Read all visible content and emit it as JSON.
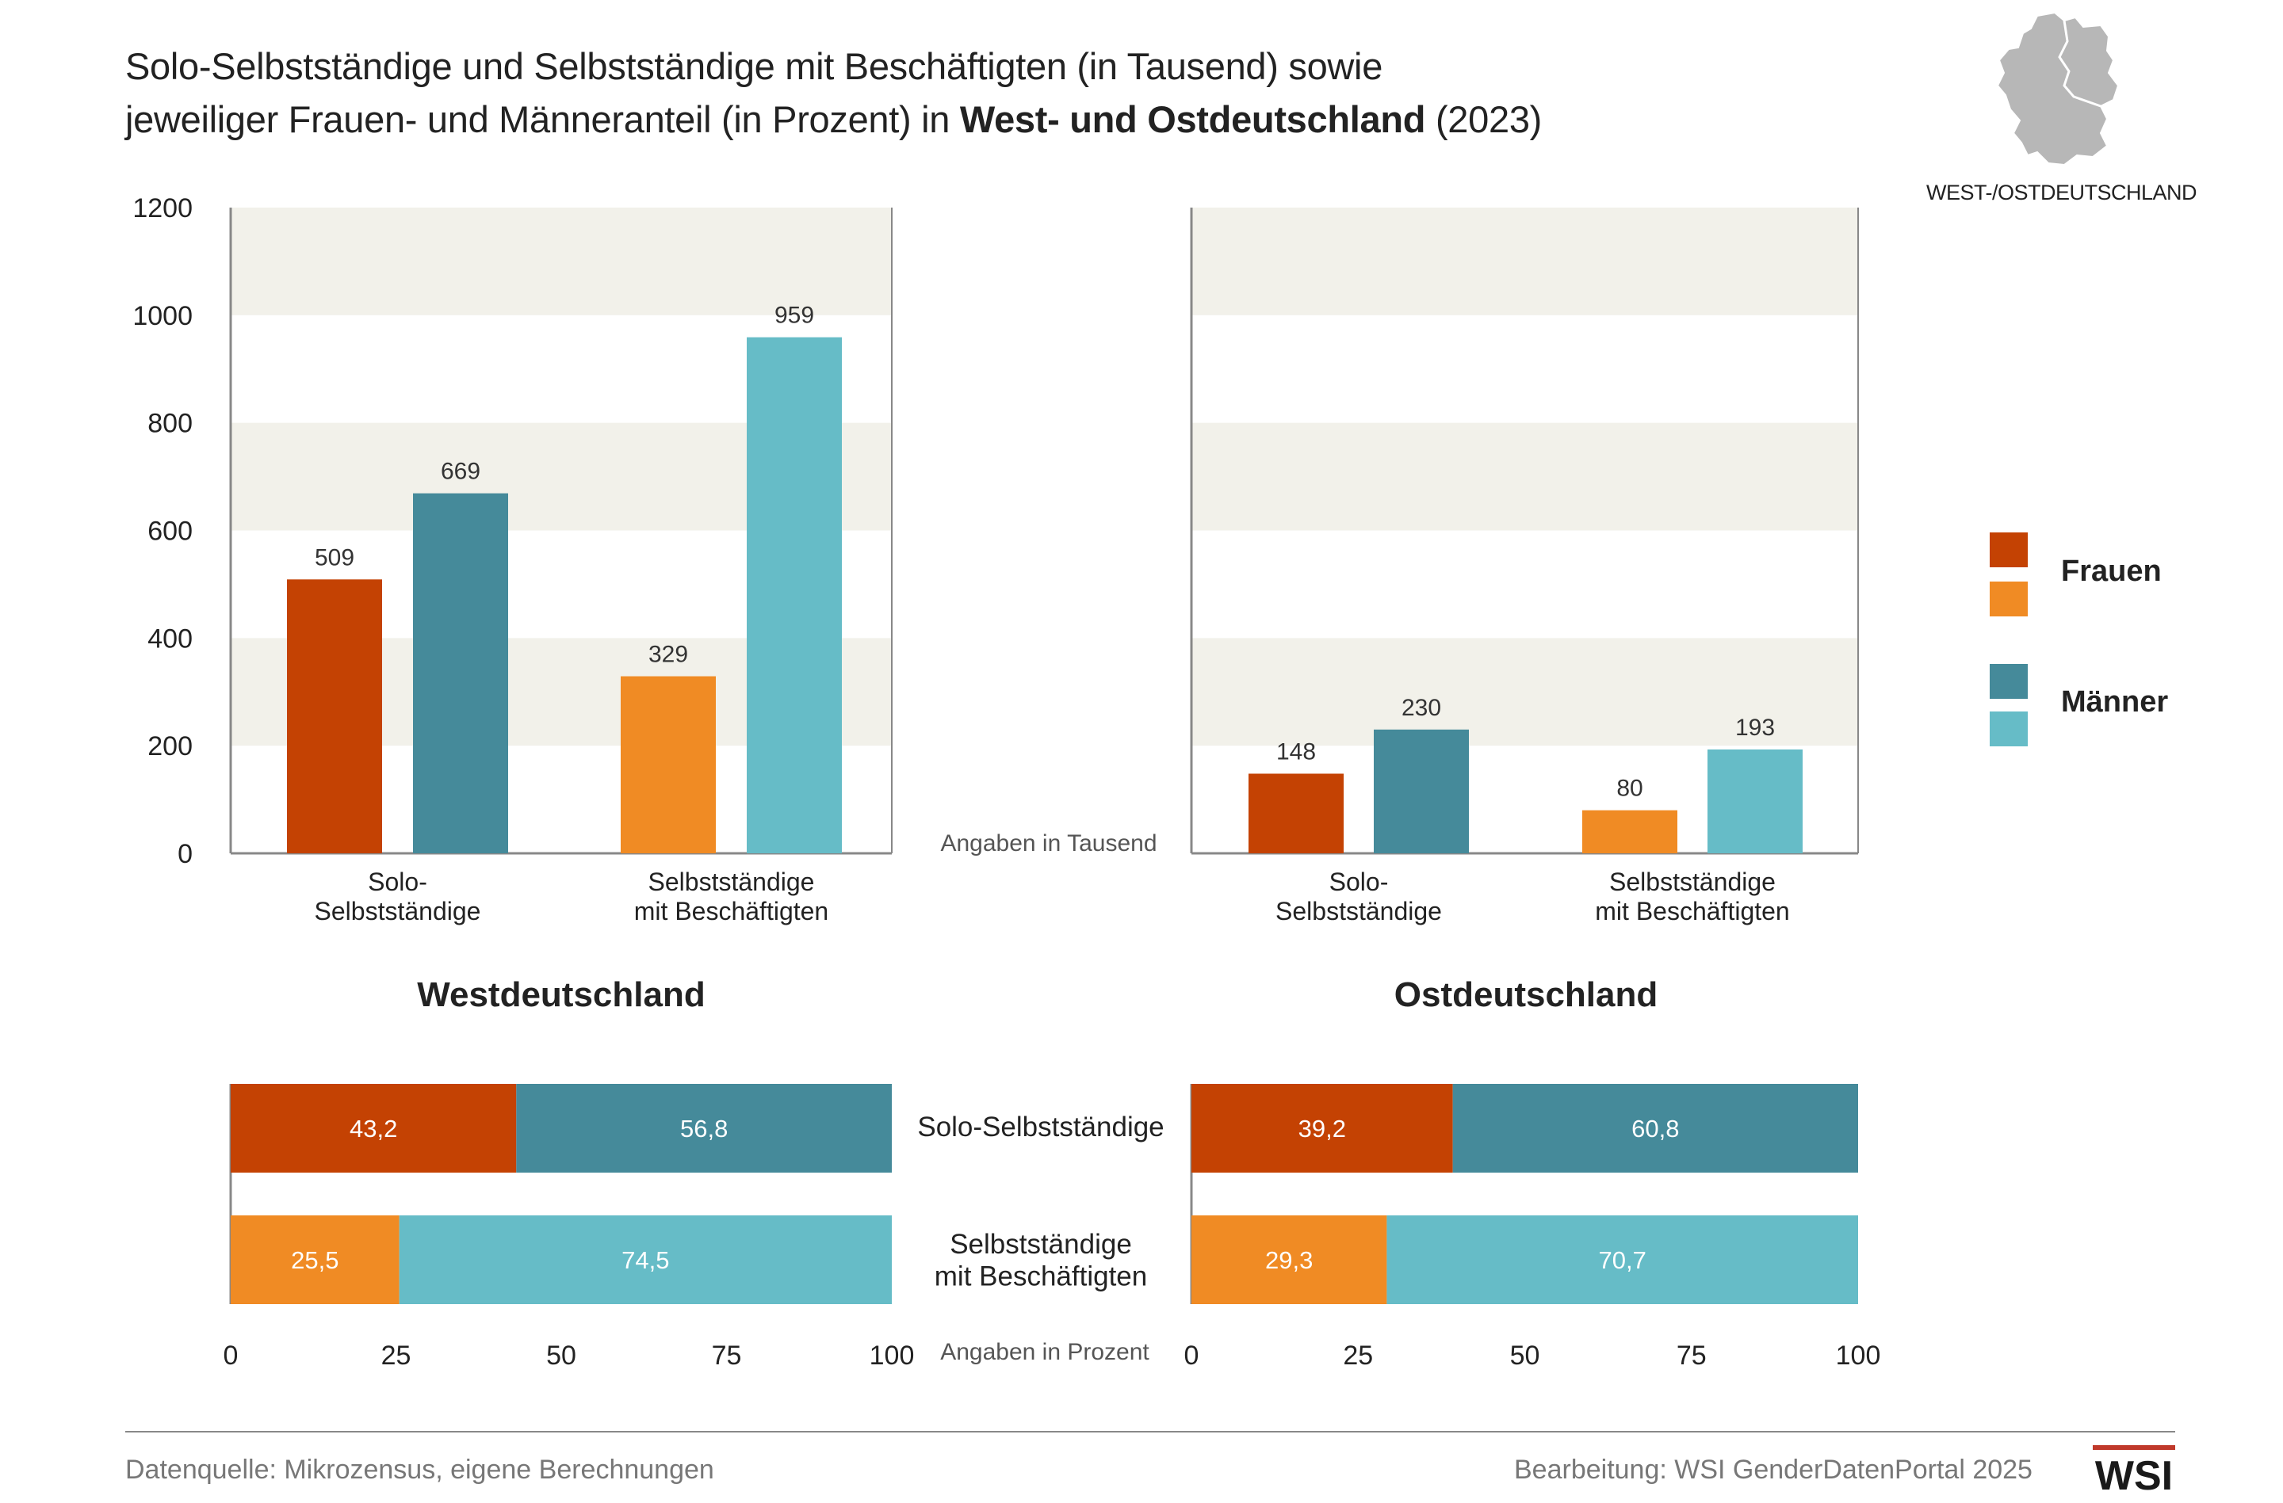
{
  "header": {
    "title_line1": "Solo-Selbstständige und Selbstständige mit Beschäftigten (in Tausend) sowie",
    "title_line2_pre": "jeweiliger Frauen- und Männeranteil (in Prozent) in ",
    "title_line2_bold": "West- und Ostdeutschland",
    "title_line2_post": " (2023)",
    "map_label": "WEST-/OSTDEUTSCHLAND"
  },
  "legend": {
    "frauen": "Frauen",
    "maenner": "Männer"
  },
  "colors": {
    "frauen_solo": "#c44203",
    "frauen_mit": "#f08b24",
    "maenner_solo": "#458a9a",
    "maenner_mit": "#66bcc7",
    "band": "#f2f1ea",
    "axis": "#888888"
  },
  "chart_data": [
    {
      "type": "bar",
      "title": "Westdeutschland",
      "ylabel": "Angaben in Tausend",
      "ylim": [
        0,
        1200
      ],
      "yticks": [
        "0",
        "200",
        "400",
        "600",
        "800",
        "1000",
        "1200"
      ],
      "categories": [
        "Solo-\nSelbstständige",
        "Selbstständige\nmit Beschäftigten"
      ],
      "series": [
        {
          "name": "Frauen",
          "values": [
            509,
            329
          ]
        },
        {
          "name": "Männer",
          "values": [
            669,
            959
          ]
        }
      ]
    },
    {
      "type": "bar",
      "title": "Ostdeutschland",
      "ylabel": "Angaben in Tausend",
      "ylim": [
        0,
        1200
      ],
      "categories": [
        "Solo-\nSelbstständige",
        "Selbstständige\nmit Beschäftigten"
      ],
      "series": [
        {
          "name": "Frauen",
          "values": [
            148,
            80
          ]
        },
        {
          "name": "Männer",
          "values": [
            230,
            193
          ]
        }
      ]
    },
    {
      "type": "bar",
      "orientation": "horizontal-stacked",
      "title": "Westdeutschland",
      "xlabel": "Angaben in Prozent",
      "xlim": [
        0,
        100
      ],
      "xticks": [
        "0",
        "25",
        "50",
        "75",
        "100"
      ],
      "categories": [
        "Solo-Selbstständige",
        "Selbstständige\nmit Beschäftigten"
      ],
      "series": [
        {
          "name": "Frauen",
          "values": [
            43.2,
            25.5
          ],
          "labels": [
            "43,2",
            "25,5"
          ]
        },
        {
          "name": "Männer",
          "values": [
            56.8,
            74.5
          ],
          "labels": [
            "56,8",
            "74,5"
          ]
        }
      ]
    },
    {
      "type": "bar",
      "orientation": "horizontal-stacked",
      "title": "Ostdeutschland",
      "xlabel": "Angaben in Prozent",
      "xlim": [
        0,
        100
      ],
      "xticks": [
        "0",
        "25",
        "50",
        "75",
        "100"
      ],
      "categories": [
        "Solo-Selbstständige",
        "Selbstständige\nmit Beschäftigten"
      ],
      "series": [
        {
          "name": "Frauen",
          "values": [
            39.2,
            29.3
          ],
          "labels": [
            "39,2",
            "29,3"
          ]
        },
        {
          "name": "Männer",
          "values": [
            60.8,
            70.7
          ],
          "labels": [
            "60,8",
            "70,7"
          ]
        }
      ]
    }
  ],
  "footer": {
    "source": "Datenquelle: Mikrozensus, eigene Berechnungen",
    "credit": "Bearbeitung: WSI GenderDatenPortal 2025",
    "logo": "WSI"
  }
}
